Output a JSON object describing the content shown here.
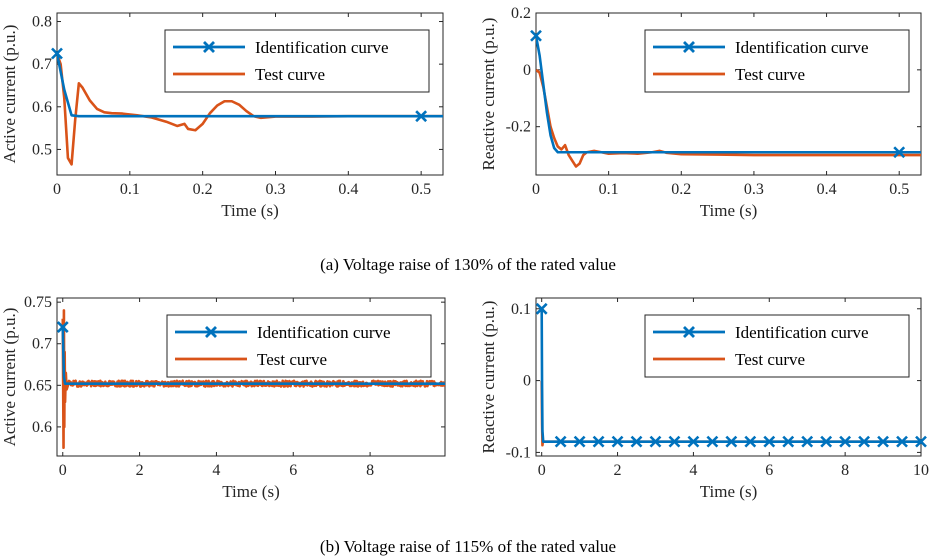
{
  "chart_data": [
    {
      "id": "a-active",
      "type": "line",
      "xlabel": "Time (s)",
      "ylabel": "Active current (p.u.)",
      "xlim": [
        0,
        0.53
      ],
      "ylim": [
        0.44,
        0.82
      ],
      "xticks": [
        0,
        0.1,
        0.2,
        0.3,
        0.4,
        0.5
      ],
      "yticks": [
        0.5,
        0.6,
        0.7,
        0.8
      ],
      "legend_position": "top-right",
      "series": [
        {
          "name": "Identification curve",
          "color": "#0072BD",
          "marker": "x",
          "markers_at": [
            0,
            0.5
          ],
          "x": [
            0,
            0.01,
            0.02,
            0.03,
            0.5,
            0.53
          ],
          "y": [
            0.725,
            0.64,
            0.58,
            0.578,
            0.578,
            0.578
          ]
        },
        {
          "name": "Test curve",
          "color": "#D95319",
          "x": [
            0,
            0.005,
            0.01,
            0.015,
            0.02,
            0.025,
            0.03,
            0.035,
            0.045,
            0.055,
            0.065,
            0.075,
            0.09,
            0.11,
            0.13,
            0.15,
            0.165,
            0.175,
            0.18,
            0.19,
            0.2,
            0.21,
            0.22,
            0.23,
            0.24,
            0.25,
            0.26,
            0.27,
            0.28,
            0.3,
            0.35,
            0.4,
            0.45,
            0.5,
            0.53
          ],
          "y": [
            0.725,
            0.7,
            0.62,
            0.48,
            0.465,
            0.57,
            0.655,
            0.645,
            0.615,
            0.595,
            0.587,
            0.585,
            0.584,
            0.58,
            0.575,
            0.565,
            0.555,
            0.56,
            0.548,
            0.545,
            0.56,
            0.585,
            0.603,
            0.613,
            0.613,
            0.605,
            0.59,
            0.578,
            0.574,
            0.577,
            0.577,
            0.578,
            0.578,
            0.578,
            0.578
          ]
        }
      ]
    },
    {
      "id": "a-reactive",
      "type": "line",
      "xlabel": "Time (s)",
      "ylabel": "Reactive current (p.u.)",
      "xlim": [
        0,
        0.53
      ],
      "ylim": [
        -0.37,
        0.2
      ],
      "xticks": [
        0,
        0.1,
        0.2,
        0.3,
        0.4,
        0.5
      ],
      "yticks": [
        -0.2,
        0,
        0.2
      ],
      "legend_position": "top-right",
      "series": [
        {
          "name": "Identification curve",
          "color": "#0072BD",
          "marker": "x",
          "markers_at": [
            0,
            0.5
          ],
          "x": [
            0,
            0.005,
            0.01,
            0.015,
            0.02,
            0.025,
            0.03,
            0.04,
            0.5,
            0.53
          ],
          "y": [
            0.12,
            0.05,
            -0.05,
            -0.15,
            -0.23,
            -0.275,
            -0.29,
            -0.29,
            -0.29,
            -0.29
          ]
        },
        {
          "name": "Test curve",
          "color": "#D95319",
          "x": [
            0,
            0.005,
            0.01,
            0.015,
            0.02,
            0.025,
            0.03,
            0.035,
            0.04,
            0.045,
            0.05,
            0.055,
            0.06,
            0.065,
            0.07,
            0.08,
            0.09,
            0.1,
            0.12,
            0.14,
            0.16,
            0.17,
            0.18,
            0.2,
            0.25,
            0.3,
            0.35,
            0.4,
            0.45,
            0.5,
            0.53
          ],
          "y": [
            0,
            -0.01,
            -0.06,
            -0.13,
            -0.2,
            -0.24,
            -0.27,
            -0.28,
            -0.265,
            -0.3,
            -0.32,
            -0.34,
            -0.33,
            -0.3,
            -0.29,
            -0.285,
            -0.29,
            -0.295,
            -0.293,
            -0.295,
            -0.29,
            -0.285,
            -0.292,
            -0.297,
            -0.298,
            -0.3,
            -0.3,
            -0.3,
            -0.3,
            -0.3,
            -0.3
          ]
        }
      ]
    },
    {
      "id": "b-active",
      "type": "line",
      "xlabel": "Time (s)",
      "ylabel": "Active current (p.u.)",
      "xlim": [
        -0.15,
        9.95
      ],
      "ylim": [
        0.565,
        0.755
      ],
      "xticks": [
        0,
        2,
        4,
        6,
        8
      ],
      "yticks": [
        0.6,
        0.65,
        0.7,
        0.75
      ],
      "legend_position": "top-right",
      "series": [
        {
          "name": "Identification curve",
          "color": "#0072BD",
          "marker": "x",
          "markers_at": [
            0
          ],
          "x": [
            0,
            0.03,
            0.06,
            9.95
          ],
          "y": [
            0.72,
            0.66,
            0.652,
            0.652
          ]
        },
        {
          "name": "Test curve",
          "color": "#D95319",
          "noise": 0.0035,
          "x": [
            0,
            0.02,
            0.03,
            0.04,
            0.05,
            0.06,
            0.08,
            0.1,
            0.15,
            9.95
          ],
          "y": [
            0.73,
            0.575,
            0.74,
            0.6,
            0.69,
            0.63,
            0.665,
            0.645,
            0.652,
            0.652
          ]
        }
      ]
    },
    {
      "id": "b-reactive",
      "type": "line",
      "xlabel": "Time (s)",
      "ylabel": "Reactive current (p.u.)",
      "xlim": [
        -0.15,
        10
      ],
      "ylim": [
        -0.105,
        0.115
      ],
      "xticks": [
        0,
        2,
        4,
        6,
        8,
        10
      ],
      "yticks": [
        -0.1,
        0,
        0.1
      ],
      "legend_position": "top-right",
      "series": [
        {
          "name": "Identification curve",
          "color": "#0072BD",
          "marker": "x",
          "markers_at": [
            0,
            0.5,
            1,
            1.5,
            2,
            2.5,
            3,
            3.5,
            4,
            4.5,
            5,
            5.5,
            6,
            6.5,
            7,
            7.5,
            8,
            8.5,
            9,
            9.5,
            10
          ],
          "x": [
            0,
            0.01,
            0.02,
            0.04,
            10
          ],
          "y": [
            0.1,
            -0.01,
            -0.07,
            -0.085,
            -0.085
          ]
        },
        {
          "name": "Test curve",
          "color": "#D95319",
          "x": [
            0,
            0.01,
            0.02,
            0.03,
            0.06,
            10
          ],
          "y": [
            0,
            -0.06,
            -0.09,
            -0.085,
            -0.085,
            -0.085
          ]
        }
      ]
    }
  ],
  "captions": {
    "a": "(a) Voltage raise of 130% of the rated value",
    "b": "(b) Voltage raise of 115% of the rated value"
  }
}
